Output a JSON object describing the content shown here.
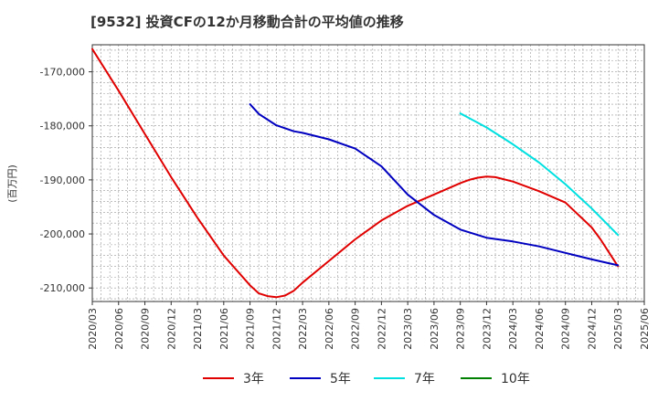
{
  "chart_data": {
    "type": "line",
    "title": "[9532]  投資CFの12か月移動合計の平均値の推移",
    "ylabel": "(百万円)",
    "xlabel": "",
    "ylim": [
      -212500,
      -165000
    ],
    "xlim": [
      "2020/03",
      "2025/06"
    ],
    "yticks": [
      -170000,
      -180000,
      -190000,
      -200000,
      -210000
    ],
    "ytick_labels": [
      "-170,000",
      "-180,000",
      "-190,000",
      "-200,000",
      "-210,000"
    ],
    "xtick_labels": [
      "2020/03",
      "2020/06",
      "2020/09",
      "2020/12",
      "2021/03",
      "2021/06",
      "2021/09",
      "2021/12",
      "2022/03",
      "2022/06",
      "2022/09",
      "2022/12",
      "2023/03",
      "2023/06",
      "2023/09",
      "2023/12",
      "2024/03",
      "2024/06",
      "2024/09",
      "2024/12",
      "2025/03",
      "2025/06"
    ],
    "grid": true,
    "legend_position": "bottom",
    "series": [
      {
        "name": "3年",
        "color": "#e00000",
        "x": [
          "2020/03",
          "2020/06",
          "2020/09",
          "2020/12",
          "2021/03",
          "2021/06",
          "2021/09",
          "2021/10",
          "2021/11",
          "2021/12",
          "2022/01",
          "2022/02",
          "2022/03",
          "2022/06",
          "2022/09",
          "2022/12",
          "2023/03",
          "2023/06",
          "2023/09",
          "2023/10",
          "2023/11",
          "2023/12",
          "2024/01",
          "2024/03",
          "2024/06",
          "2024/09",
          "2024/12",
          "2025/01",
          "2025/02",
          "2025/03"
        ],
        "values": [
          -165800,
          -173500,
          -181500,
          -189500,
          -197000,
          -204000,
          -209500,
          -211000,
          -211500,
          -211700,
          -211400,
          -210500,
          -209000,
          -205000,
          -201000,
          -197500,
          -194800,
          -192700,
          -190600,
          -190000,
          -189600,
          -189400,
          -189500,
          -190300,
          -192100,
          -194200,
          -198800,
          -201000,
          -203500,
          -206000
        ]
      },
      {
        "name": "5年",
        "color": "#0000c0",
        "x": [
          "2021/09",
          "2021/10",
          "2021/12",
          "2022/02",
          "2022/03",
          "2022/06",
          "2022/09",
          "2022/12",
          "2023/03",
          "2023/06",
          "2023/09",
          "2023/12",
          "2024/03",
          "2024/06",
          "2024/09",
          "2024/12",
          "2025/03"
        ],
        "values": [
          -176000,
          -177800,
          -179900,
          -181000,
          -181300,
          -182500,
          -184200,
          -187500,
          -192700,
          -196500,
          -199200,
          -200700,
          -201400,
          -202300,
          -203500,
          -204700,
          -205800
        ]
      },
      {
        "name": "7年",
        "color": "#00e0e0",
        "x": [
          "2023/09",
          "2023/12",
          "2024/03",
          "2024/06",
          "2024/09",
          "2024/12",
          "2025/03"
        ],
        "values": [
          -177700,
          -180300,
          -183400,
          -186800,
          -190800,
          -195300,
          -200200
        ]
      },
      {
        "name": "10年",
        "color": "#008000",
        "x": [],
        "values": []
      }
    ]
  }
}
